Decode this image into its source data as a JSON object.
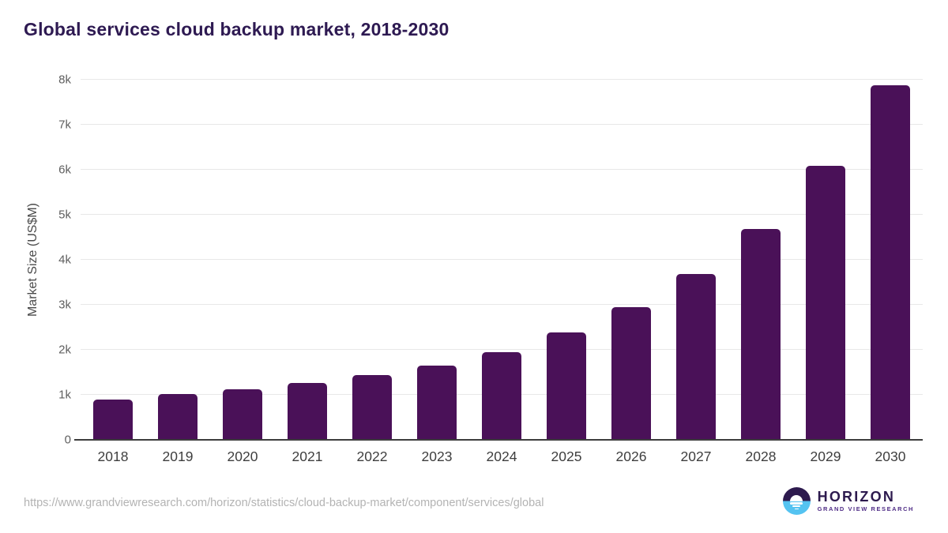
{
  "title": "Global services cloud backup market, 2018-2030",
  "chart_data": {
    "type": "bar",
    "title": "Global services cloud backup market, 2018-2030",
    "categories": [
      "2018",
      "2019",
      "2020",
      "2021",
      "2022",
      "2023",
      "2024",
      "2025",
      "2026",
      "2027",
      "2028",
      "2029",
      "2030"
    ],
    "values": [
      900,
      1010,
      1130,
      1260,
      1440,
      1650,
      1950,
      2390,
      2940,
      3690,
      4690,
      6080,
      7870
    ],
    "series_name": "Market Size",
    "xlabel": "",
    "ylabel": "Market Size (US$M)",
    "ylim": [
      0,
      8000
    ],
    "yticks": [
      {
        "value": 0,
        "label": "0"
      },
      {
        "value": 1000,
        "label": "1k"
      },
      {
        "value": 2000,
        "label": "2k"
      },
      {
        "value": 3000,
        "label": "3k"
      },
      {
        "value": 4000,
        "label": "4k"
      },
      {
        "value": 5000,
        "label": "5k"
      },
      {
        "value": 6000,
        "label": "6k"
      },
      {
        "value": 7000,
        "label": "7k"
      },
      {
        "value": 8000,
        "label": "8k"
      }
    ],
    "grid": true,
    "legend_position": "none",
    "bar_color": "#4a1158"
  },
  "footer": {
    "source_url": "https://www.grandviewresearch.com/horizon/statistics/cloud-backup-market/component/services/global",
    "logo": {
      "brand": "HORIZON",
      "subtitle": "GRAND VIEW RESEARCH",
      "icon": "horizon-sunset-circle-icon"
    }
  },
  "colors": {
    "bar": "#4a1158",
    "title": "#2e1a52",
    "logo_dark": "#2d1a4e",
    "logo_blue": "#54c3f1",
    "logo_sub": "#4f2c86",
    "gridline": "#e8e8e8",
    "axis_line": "#3d3d3d"
  }
}
